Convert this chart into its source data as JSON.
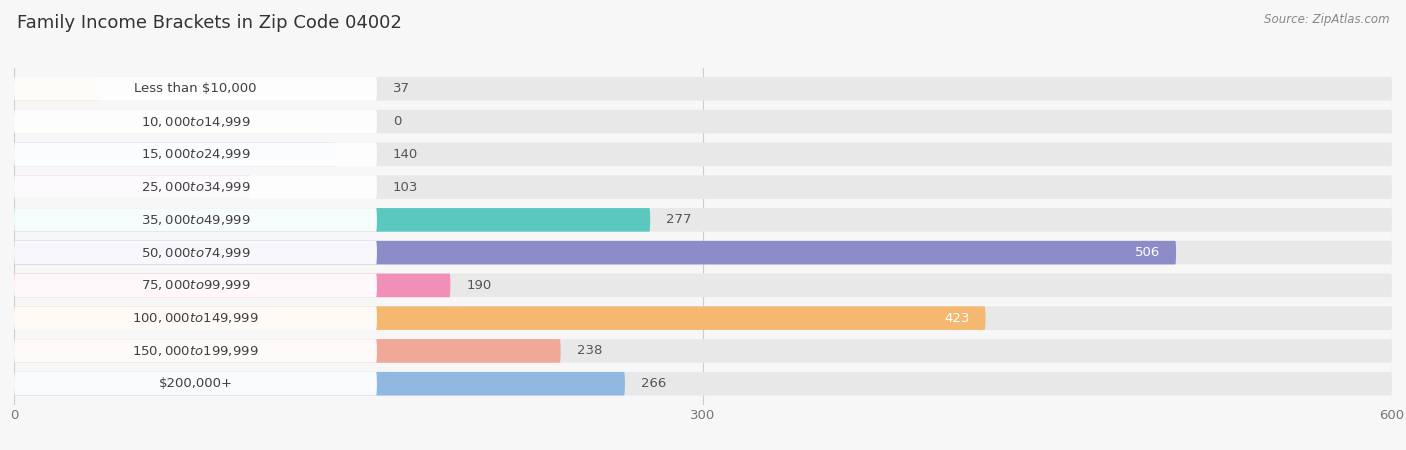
{
  "title": "Family Income Brackets in Zip Code 04002",
  "source": "Source: ZipAtlas.com",
  "categories": [
    "Less than $10,000",
    "$10,000 to $14,999",
    "$15,000 to $24,999",
    "$25,000 to $34,999",
    "$35,000 to $49,999",
    "$50,000 to $74,999",
    "$75,000 to $99,999",
    "$100,000 to $149,999",
    "$150,000 to $199,999",
    "$200,000+"
  ],
  "values": [
    37,
    0,
    140,
    103,
    277,
    506,
    190,
    423,
    238,
    266
  ],
  "bar_colors": [
    "#F5C98A",
    "#F4A0A0",
    "#A8C8F0",
    "#C8A8D8",
    "#5BC8C0",
    "#8B8CC8",
    "#F090B8",
    "#F5B870",
    "#F0A898",
    "#90B8E0"
  ],
  "xlim": [
    0,
    600
  ],
  "xticks": [
    0,
    300,
    600
  ],
  "background_color": "#f7f7f7",
  "bar_bg_color": "#e8e8e8",
  "title_fontsize": 13,
  "label_fontsize": 9.5,
  "value_fontsize": 9.5,
  "inside_label_values": [
    506,
    423
  ],
  "inside_label_color": "white",
  "outside_label_color": "#555555"
}
